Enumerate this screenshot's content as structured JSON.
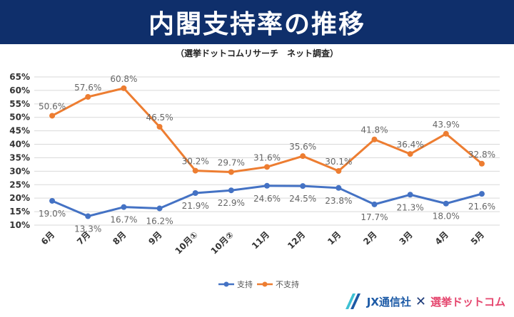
{
  "header": {
    "title": "内閣支持率の推移",
    "subtitle": "（選挙ドットコムリサーチ　ネット調査）"
  },
  "footer": {
    "logo_jx": "JX通信社",
    "logo_sep": "✕",
    "logo_senkyo": "選挙ドットコム"
  },
  "colors": {
    "banner": "#0f2f6b",
    "support": "#4472c4",
    "disapprove": "#ed7d31",
    "grid": "#d9d9d9"
  },
  "chart_data": {
    "type": "line",
    "categories": [
      "6月",
      "7月",
      "8月",
      "9月",
      "10月①",
      "10月②",
      "11月",
      "12月",
      "1月",
      "2月",
      "3月",
      "4月",
      "5月"
    ],
    "ylim": [
      10,
      65
    ],
    "yticks": [
      "10%",
      "15%",
      "20%",
      "25%",
      "30%",
      "35%",
      "40%",
      "45%",
      "50%",
      "55%",
      "60%",
      "65%"
    ],
    "grid": true,
    "legend_position": "bottom",
    "series": [
      {
        "name": "支持",
        "color": "#4472c4",
        "values": [
          19.0,
          13.3,
          16.7,
          16.2,
          21.9,
          22.9,
          24.6,
          24.5,
          23.8,
          17.7,
          21.3,
          18.0,
          21.6
        ],
        "labels": [
          "19.0%",
          "13.3%",
          "16.7%",
          "16.2%",
          "21.9%",
          "22.9%",
          "24.6%",
          "24.5%",
          "23.8%",
          "17.7%",
          "21.3%",
          "18.0%",
          "21.6%"
        ]
      },
      {
        "name": "不支持",
        "color": "#ed7d31",
        "values": [
          50.6,
          57.6,
          60.8,
          46.5,
          30.2,
          29.7,
          31.6,
          35.6,
          30.1,
          41.8,
          36.4,
          43.9,
          32.8
        ],
        "labels": [
          "50.6%",
          "57.6%",
          "60.8%",
          "46.5%",
          "30.2%",
          "29.7%",
          "31.6%",
          "35.6%",
          "30.1%",
          "41.8%",
          "36.4%",
          "43.9%",
          "32.8%"
        ]
      }
    ]
  }
}
